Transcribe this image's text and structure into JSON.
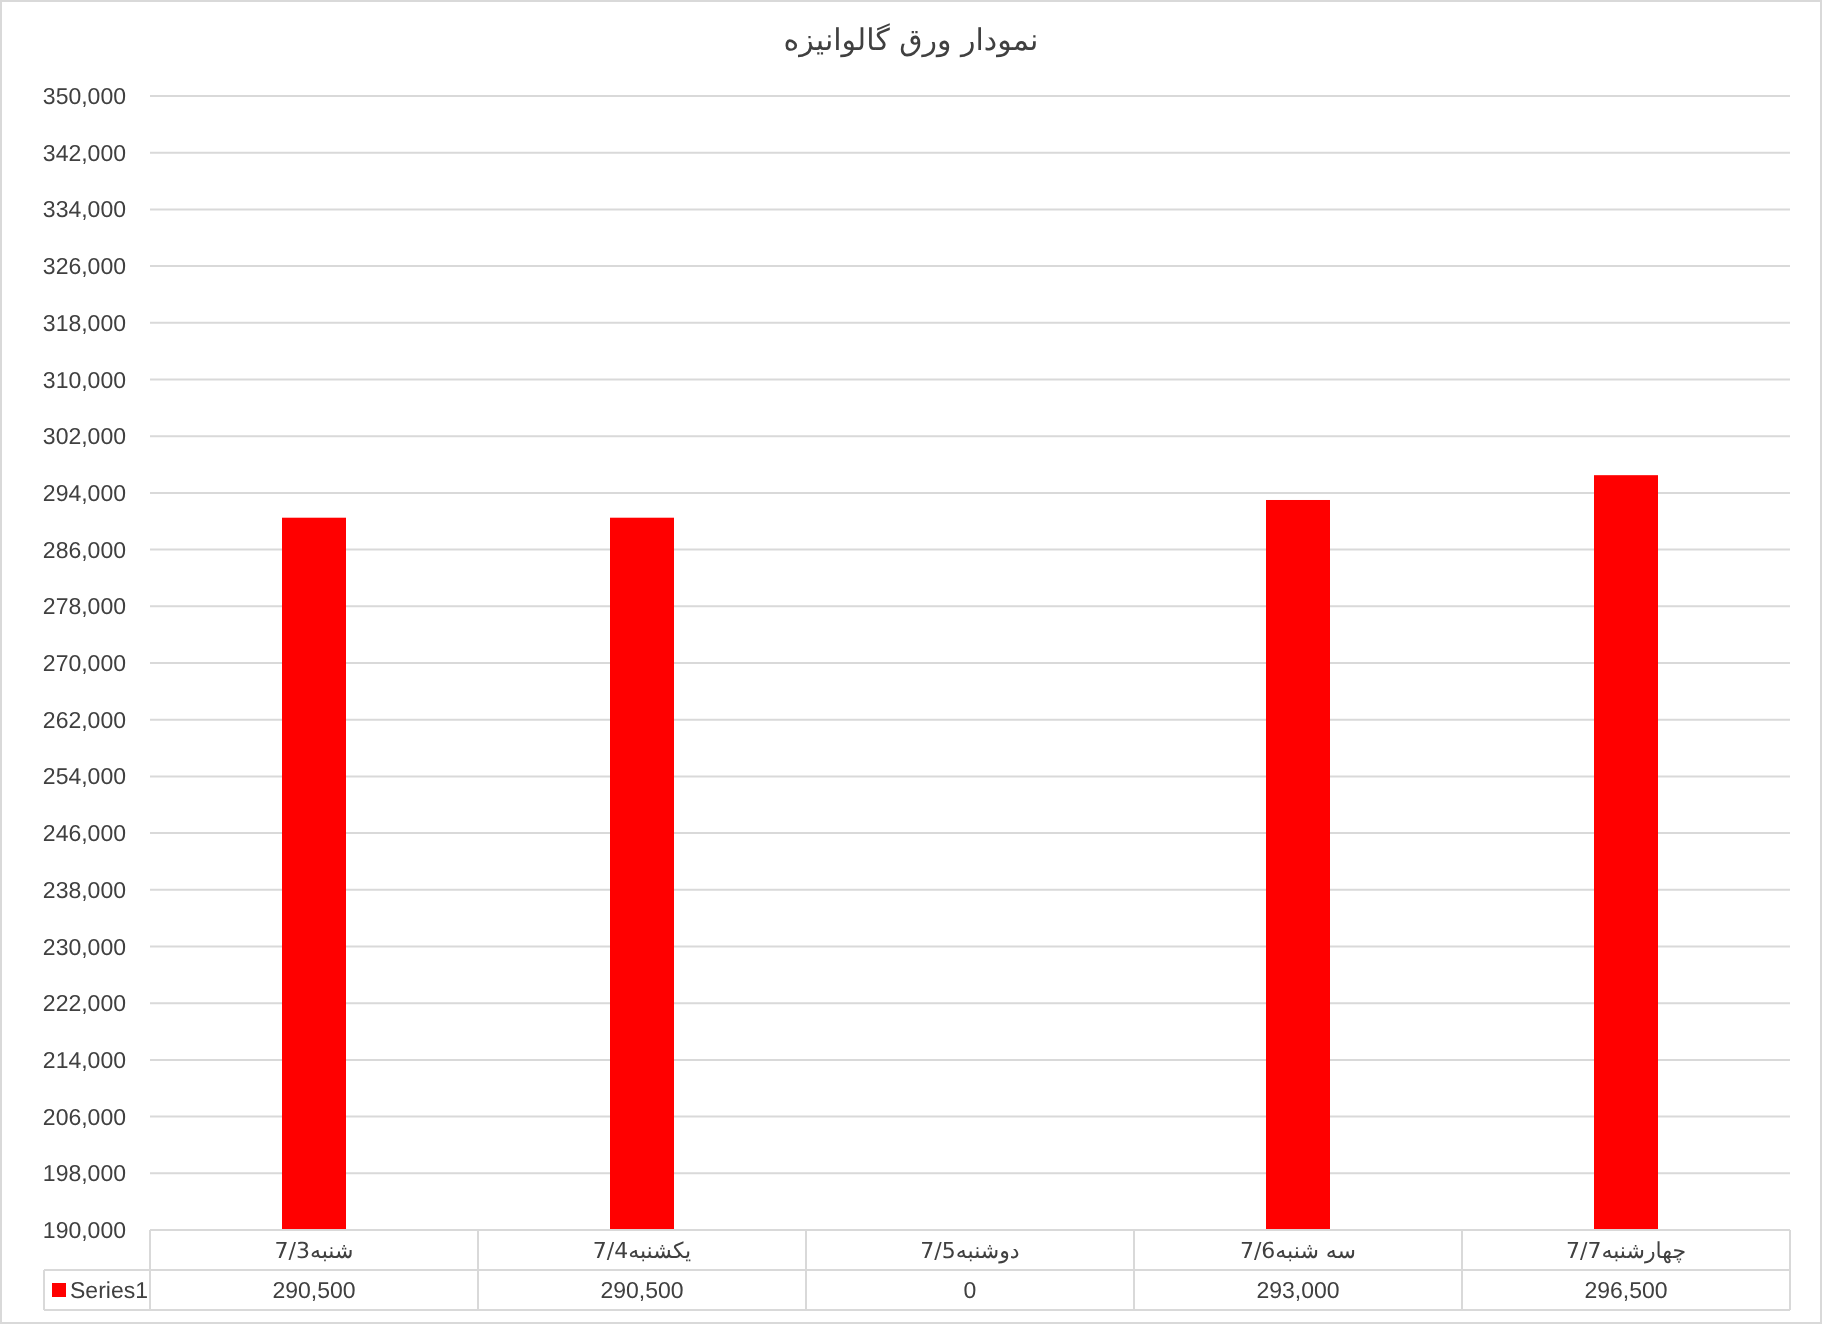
{
  "chart_data": {
    "type": "bar",
    "title": "نمودار ورق گالوانیزه",
    "categories": [
      "شنبه7/3",
      "یکشنبه7/4",
      "دوشنبه7/5",
      "سه شنبه7/6",
      "چهارشنبه7/7"
    ],
    "series": [
      {
        "name": "Series1",
        "color": "#ff0000",
        "values": [
          290500,
          290500,
          null,
          293000,
          296500
        ]
      }
    ],
    "value_labels": [
      "290,500",
      "290,500",
      "0",
      "293,000",
      "296,500"
    ],
    "ylim": [
      190000,
      350000
    ],
    "yticks": [
      {
        "value": 190000,
        "label": "190,000"
      },
      {
        "value": 198000,
        "label": "198,000"
      },
      {
        "value": 206000,
        "label": "206,000"
      },
      {
        "value": 214000,
        "label": "214,000"
      },
      {
        "value": 222000,
        "label": "222,000"
      },
      {
        "value": 230000,
        "label": "230,000"
      },
      {
        "value": 238000,
        "label": "238,000"
      },
      {
        "value": 246000,
        "label": "246,000"
      },
      {
        "value": 254000,
        "label": "254,000"
      },
      {
        "value": 262000,
        "label": "262,000"
      },
      {
        "value": 270000,
        "label": "270,000"
      },
      {
        "value": 278000,
        "label": "278,000"
      },
      {
        "value": 286000,
        "label": "286,000"
      },
      {
        "value": 294000,
        "label": "294,000"
      },
      {
        "value": 302000,
        "label": "302,000"
      },
      {
        "value": 310000,
        "label": "310,000"
      },
      {
        "value": 318000,
        "label": "318,000"
      },
      {
        "value": 326000,
        "label": "326,000"
      },
      {
        "value": 334000,
        "label": "334,000"
      },
      {
        "value": 342000,
        "label": "342,000"
      },
      {
        "value": 350000,
        "label": "350,000"
      }
    ],
    "grid": "y",
    "legend": "bottom"
  }
}
